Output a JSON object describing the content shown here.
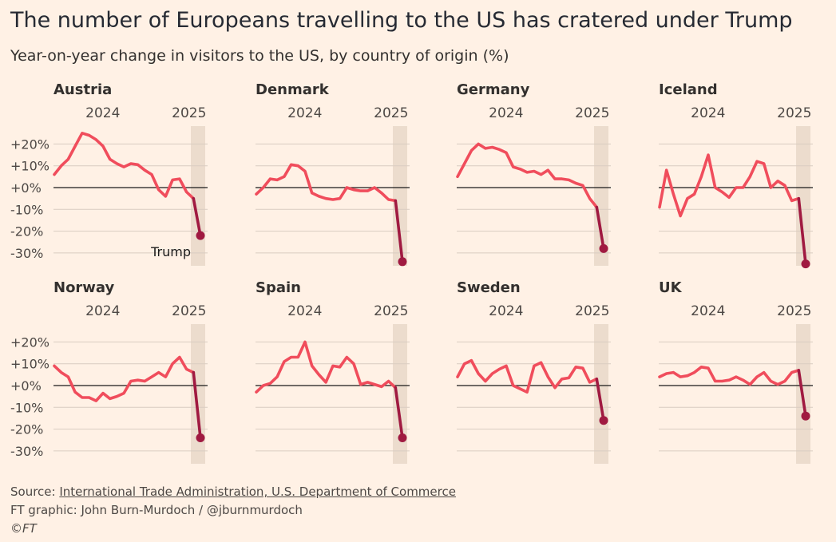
{
  "title": "The number of Europeans travelling to the US has cratered under Trump",
  "subtitle": "Year-on-year change in visitors to the US, by country of origin (%)",
  "footer": {
    "source_prefix": "Source: ",
    "source_link": "International Trade Administration, U.S. Department of Commerce",
    "credit": "FT graphic: John Burn-Murdoch / @jburnmurdoch",
    "copyright": "©FT"
  },
  "colors": {
    "background": "#fff1e5",
    "line": "#f04d5c",
    "trump_line": "#a01a41",
    "shade": "#ecdccd",
    "grid": "#d9ccc1",
    "zero": "#1a1a1a"
  },
  "chart_data": [
    {
      "type": "line",
      "title": "Austria",
      "x_tick_labels": [
        "2024",
        "2025"
      ],
      "y_tick_labels": [
        "+20%",
        "+10%",
        "+0%",
        "-10%",
        "-20%",
        "-30%"
      ],
      "ylim": [
        -30,
        20
      ],
      "annotation": "Trump",
      "values": [
        6,
        10,
        13,
        19,
        25,
        24,
        22,
        19,
        13,
        11,
        9.5,
        11,
        10.5,
        8,
        6,
        -1,
        -4,
        3.5,
        4,
        -2,
        -5,
        -22
      ]
    },
    {
      "type": "line",
      "title": "Denmark",
      "x_tick_labels": [
        "2024",
        "2025"
      ],
      "y_tick_labels": [
        "+20%",
        "+10%",
        "+0%",
        "-10%",
        "-20%",
        "-30%"
      ],
      "ylim": [
        -30,
        20
      ],
      "values": [
        -3,
        0,
        4,
        3.5,
        5,
        10.5,
        10,
        7.5,
        -2.5,
        -4,
        -5,
        -5.5,
        -5,
        0,
        -1,
        -1.5,
        -1.5,
        0,
        -2.5,
        -5.5,
        -6,
        -34
      ]
    },
    {
      "type": "line",
      "title": "Germany",
      "x_tick_labels": [
        "2024",
        "2025"
      ],
      "y_tick_labels": [
        "+20%",
        "+10%",
        "+0%",
        "-10%",
        "-20%",
        "-30%"
      ],
      "ylim": [
        -30,
        20
      ],
      "values": [
        5,
        11,
        17,
        20,
        18,
        18.5,
        17.5,
        16,
        9.5,
        8.5,
        7,
        7.5,
        6,
        8,
        4,
        4,
        3.5,
        2,
        1,
        -5,
        -9,
        -28
      ]
    },
    {
      "type": "line",
      "title": "Iceland",
      "x_tick_labels": [
        "2024",
        "2025"
      ],
      "y_tick_labels": [
        "+20%",
        "+10%",
        "+0%",
        "-10%",
        "-20%",
        "-30%"
      ],
      "ylim": [
        -30,
        20
      ],
      "values": [
        -9,
        8,
        -3,
        -13,
        -5,
        -3,
        5,
        15,
        0,
        -2,
        -4.5,
        0,
        0,
        5,
        12,
        11,
        0,
        3,
        1,
        -6,
        -5,
        -35
      ]
    },
    {
      "type": "line",
      "title": "Norway",
      "x_tick_labels": [
        "2024",
        "2025"
      ],
      "y_tick_labels": [
        "+20%",
        "+10%",
        "+0%",
        "-10%",
        "-20%",
        "-30%"
      ],
      "ylim": [
        -30,
        20
      ],
      "values": [
        9,
        6,
        4,
        -3,
        -5.5,
        -5.5,
        -7,
        -3.5,
        -6,
        -5,
        -3.5,
        2,
        2.5,
        2,
        4,
        6,
        4,
        10,
        13,
        7.5,
        6,
        -24
      ]
    },
    {
      "type": "line",
      "title": "Spain",
      "x_tick_labels": [
        "2024",
        "2025"
      ],
      "y_tick_labels": [
        "+20%",
        "+10%",
        "+0%",
        "-10%",
        "-20%",
        "-30%"
      ],
      "ylim": [
        -30,
        20
      ],
      "values": [
        -3,
        0,
        1,
        4,
        11,
        13,
        13,
        20,
        9,
        5,
        1.5,
        9,
        8.5,
        13,
        10,
        0.5,
        1.5,
        0.5,
        -0.5,
        2,
        -1,
        -24
      ]
    },
    {
      "type": "line",
      "title": "Sweden",
      "x_tick_labels": [
        "2024",
        "2025"
      ],
      "y_tick_labels": [
        "+20%",
        "+10%",
        "+0%",
        "-10%",
        "-20%",
        "-30%"
      ],
      "ylim": [
        -30,
        20
      ],
      "values": [
        4,
        10,
        11.5,
        5.5,
        2,
        5.5,
        7.5,
        9,
        0,
        -1.5,
        -3,
        9,
        10.5,
        4,
        -1,
        3,
        3.5,
        8.5,
        8,
        1.5,
        3,
        -16
      ]
    },
    {
      "type": "line",
      "title": "UK",
      "x_tick_labels": [
        "2024",
        "2025"
      ],
      "y_tick_labels": [
        "+20%",
        "+10%",
        "+0%",
        "-10%",
        "-20%",
        "-30%"
      ],
      "ylim": [
        -30,
        20
      ],
      "values": [
        4,
        5.5,
        6,
        4,
        4.5,
        6,
        8.5,
        8,
        2,
        2,
        2.5,
        4,
        2.5,
        0.5,
        4,
        6,
        2,
        0.5,
        2,
        6,
        7,
        -14
      ]
    }
  ]
}
